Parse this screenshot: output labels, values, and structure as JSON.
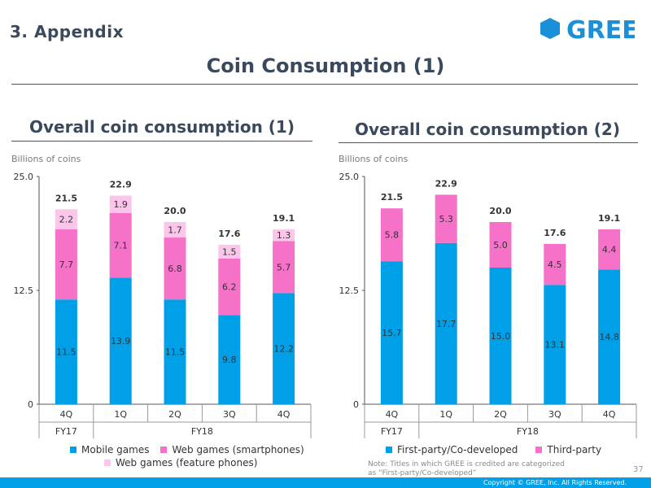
{
  "header": {
    "section": "3. Appendix",
    "title": "Coin Consumption (1)",
    "logo_text": "GREE"
  },
  "colors": {
    "mobile": "#00a0e9",
    "web_smartphones": "#f572c8",
    "web_feature_phones": "#fbc6ea",
    "first_party": "#00a0e9",
    "third_party": "#f572c8",
    "axis": "#555555",
    "logo": "#1a90d8"
  },
  "charts": [
    {
      "title": "Overall coin consumption (1)",
      "units": "Billions of coins"
    },
    {
      "title": "Overall coin consumption (2)",
      "units": "Billions of coins"
    }
  ],
  "chart_data": [
    {
      "type": "bar",
      "stacked": true,
      "title": "Overall coin consumption (1)",
      "ylabel": "Billions of coins",
      "ylim": [
        0,
        25
      ],
      "yticks": [
        "0",
        "12.5",
        "25.0"
      ],
      "categories": [
        "4Q",
        "1Q",
        "2Q",
        "3Q",
        "4Q"
      ],
      "groups": [
        {
          "label": "FY17",
          "span": 1
        },
        {
          "label": "FY18",
          "span": 4
        }
      ],
      "totals": [
        "21.5",
        "22.9",
        "20.0",
        "17.6",
        "19.1"
      ],
      "series": [
        {
          "name": "Mobile games",
          "values": [
            11.5,
            13.9,
            11.5,
            9.8,
            12.2
          ],
          "labels": [
            "11.5",
            "13.9",
            "11.5",
            "9.8",
            "12.2"
          ],
          "color": "#00a0e9"
        },
        {
          "name": "Web games (smartphones)",
          "values": [
            7.7,
            7.1,
            6.8,
            6.2,
            5.7
          ],
          "labels": [
            "7.7",
            "7.1",
            "6.8",
            "6.2",
            "5.7"
          ],
          "color": "#f572c8"
        },
        {
          "name": "Web games (feature phones)",
          "values": [
            2.2,
            1.9,
            1.7,
            1.5,
            1.3
          ],
          "labels": [
            "2.2",
            "1.9",
            "1.7",
            "1.5",
            "1.3"
          ],
          "color": "#fbc6ea"
        }
      ],
      "legend": "bottom"
    },
    {
      "type": "bar",
      "stacked": true,
      "title": "Overall coin consumption (2)",
      "ylabel": "Billions of coins",
      "ylim": [
        0,
        25
      ],
      "yticks": [
        "0",
        "12.5",
        "25.0"
      ],
      "categories": [
        "4Q",
        "1Q",
        "2Q",
        "3Q",
        "4Q"
      ],
      "groups": [
        {
          "label": "FY17",
          "span": 1
        },
        {
          "label": "FY18",
          "span": 4
        }
      ],
      "totals": [
        "21.5",
        "22.9",
        "20.0",
        "17.6",
        "19.1"
      ],
      "series": [
        {
          "name": "First-party/Co-developed",
          "values": [
            15.7,
            17.7,
            15.0,
            13.1,
            14.8
          ],
          "labels": [
            "15.7",
            "17.7",
            "15.0",
            "13.1",
            "14.8"
          ],
          "color": "#00a0e9"
        },
        {
          "name": "Third-party",
          "values": [
            5.8,
            5.3,
            5.0,
            4.5,
            4.4
          ],
          "labels": [
            "5.8",
            "5.3",
            "5.0",
            "4.5",
            "4.4"
          ],
          "color": "#f572c8"
        }
      ],
      "legend": "bottom"
    }
  ],
  "note": {
    "line1": "Note: Titles in which GREE is credited are categorized",
    "line2": "as “First-party/Co-developed”"
  },
  "footer": {
    "page": "37",
    "copyright": "Copyright © GREE, Inc. All Rights Reserved."
  }
}
